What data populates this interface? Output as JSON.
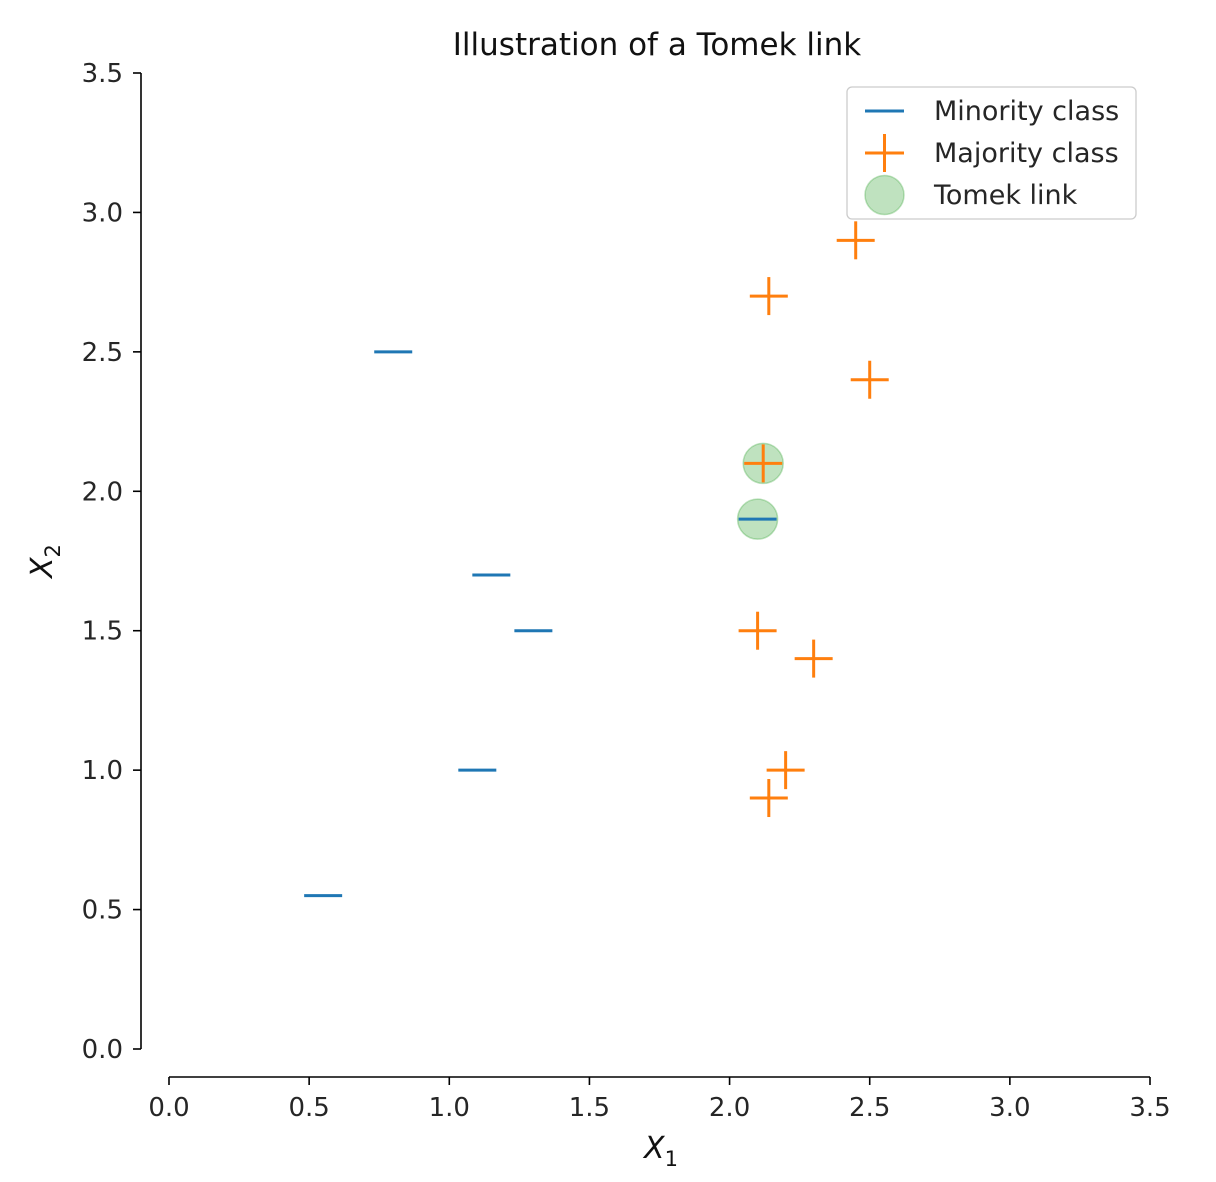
{
  "chart_data": {
    "type": "scatter",
    "title": "Illustration of a Tomek link",
    "xlabel": "X",
    "xlabel_sub": "1",
    "ylabel": "X",
    "ylabel_sub": "2",
    "xlim": [
      0.0,
      3.5
    ],
    "ylim": [
      0.0,
      3.5
    ],
    "x_ticks": [
      "0.0",
      "0.5",
      "1.0",
      "1.5",
      "2.0",
      "2.5",
      "3.0",
      "3.5"
    ],
    "y_ticks": [
      "0.0",
      "0.5",
      "1.0",
      "1.5",
      "2.0",
      "2.5",
      "3.0",
      "3.5"
    ],
    "grid": false,
    "legend_position": "top-right",
    "series": [
      {
        "name": "Minority class",
        "marker": "_",
        "color": "#1f77b4",
        "points": [
          [
            0.8,
            2.5
          ],
          [
            1.15,
            1.7
          ],
          [
            1.3,
            1.5
          ],
          [
            1.1,
            1.0
          ],
          [
            0.55,
            0.55
          ],
          [
            2.1,
            1.9
          ]
        ]
      },
      {
        "name": "Majority class",
        "marker": "+",
        "color": "#ff7f0e",
        "points": [
          [
            2.45,
            2.9
          ],
          [
            2.14,
            2.7
          ],
          [
            2.5,
            2.4
          ],
          [
            2.12,
            2.1
          ],
          [
            2.1,
            1.5
          ],
          [
            2.3,
            1.4
          ],
          [
            2.2,
            1.0
          ],
          [
            2.14,
            0.9
          ]
        ]
      },
      {
        "name": "Tomek link",
        "marker": "o",
        "color": "#2ca02c",
        "alpha": 0.3,
        "points": [
          [
            2.12,
            2.1
          ],
          [
            2.1,
            1.9
          ]
        ]
      }
    ]
  }
}
